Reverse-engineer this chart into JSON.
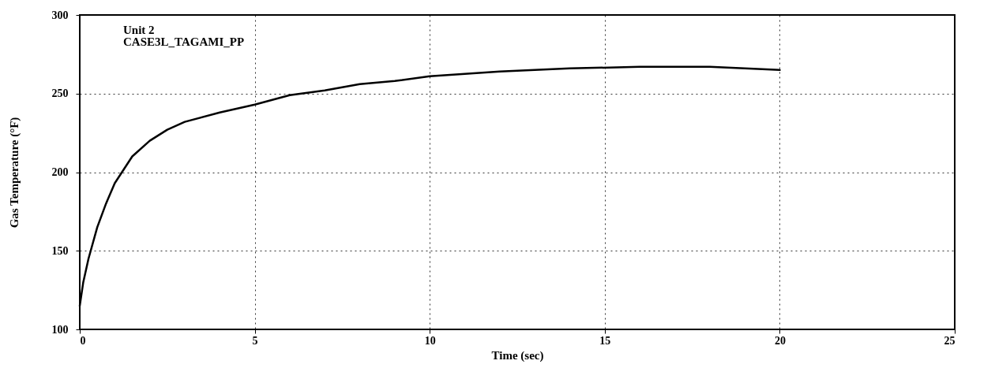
{
  "chart_data": {
    "type": "line",
    "xlabel": "Time (sec)",
    "ylabel": "Gas Temperature (°F)",
    "annotations": [
      "Unit 2",
      "CASE3L_TAGAMI_PP"
    ],
    "x": [
      0,
      0.1,
      0.25,
      0.5,
      0.75,
      1,
      1.5,
      2,
      2.5,
      3,
      4,
      5,
      6,
      7,
      8,
      9,
      10,
      12,
      14,
      16,
      18,
      19,
      20
    ],
    "series": [
      {
        "color": "#000000",
        "values": [
          115,
          130,
          145,
          165,
          180,
          193,
          210,
          220,
          227,
          232,
          238,
          243,
          249,
          252,
          256,
          258,
          261,
          264,
          266,
          267,
          267,
          266,
          265
        ]
      }
    ],
    "xlim": [
      0,
      25
    ],
    "xticks": [
      0,
      5,
      10,
      15,
      20,
      25
    ],
    "ylim": [
      100,
      300
    ],
    "yticks": [
      100,
      150,
      200,
      250,
      300
    ],
    "grid": true,
    "line_style": "solid",
    "marker": "none"
  }
}
